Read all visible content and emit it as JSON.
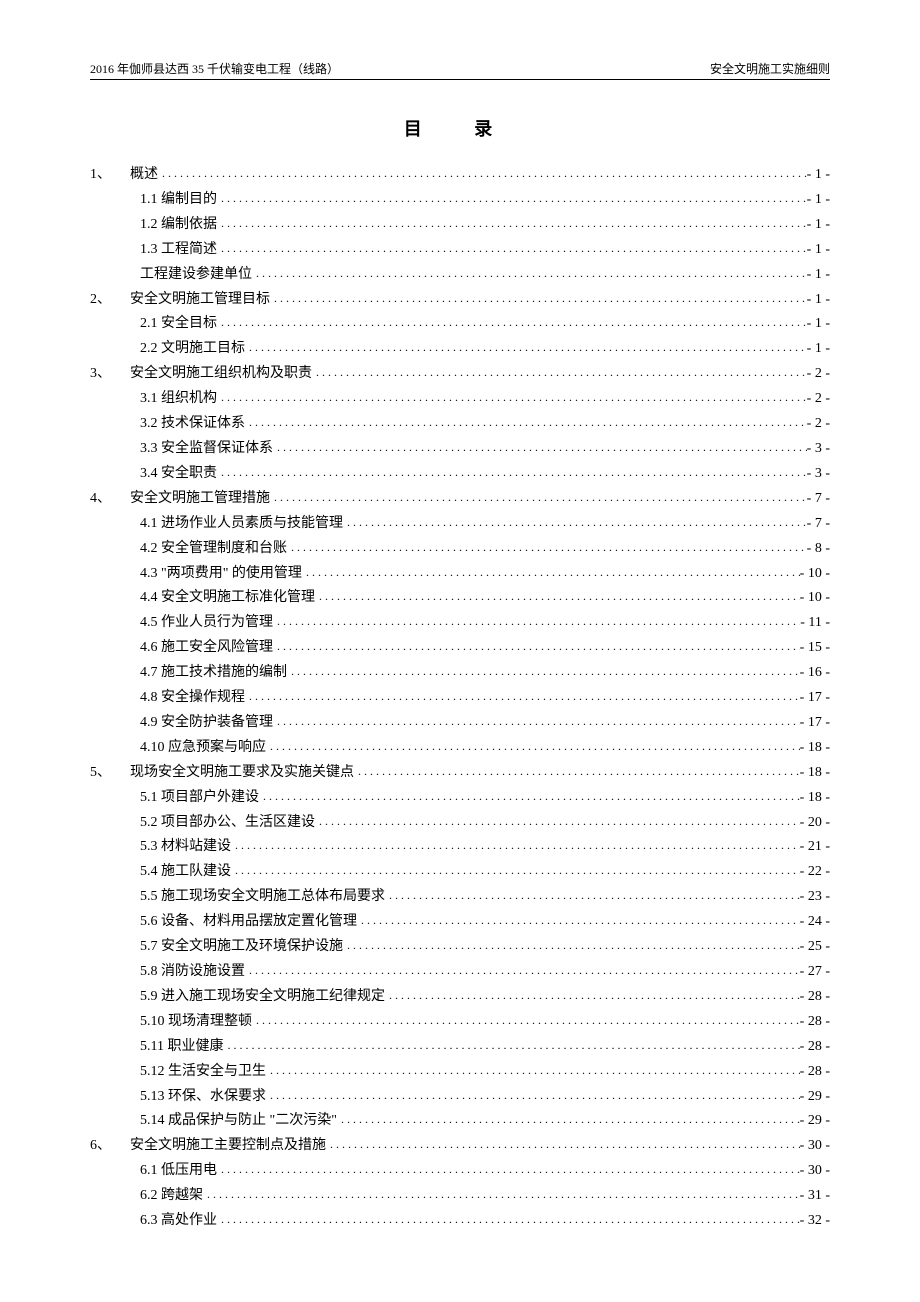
{
  "header": {
    "left": "2016 年伽师县达西 35 千伏输变电工程（线路）",
    "right": "安全文明施工实施细则"
  },
  "title": "目  录",
  "toc": [
    {
      "level": 1,
      "num": "1、",
      "label": "概述",
      "page": "- 1 -"
    },
    {
      "level": 2,
      "num": "",
      "label": "1.1 编制目的",
      "page": "- 1 -"
    },
    {
      "level": 2,
      "num": "",
      "label": "1.2 编制依据",
      "page": "- 1 -"
    },
    {
      "level": 2,
      "num": "",
      "label": "1.3 工程简述",
      "page": "- 1 -"
    },
    {
      "level": 2,
      "num": "",
      "label": "工程建设参建单位",
      "page": "- 1 -"
    },
    {
      "level": 1,
      "num": "2、",
      "label": "安全文明施工管理目标",
      "page": "- 1 -"
    },
    {
      "level": 2,
      "num": "",
      "label": "2.1 安全目标",
      "page": "- 1 -"
    },
    {
      "level": 2,
      "num": "",
      "label": "2.2 文明施工目标",
      "page": "- 1 -"
    },
    {
      "level": 1,
      "num": "3、",
      "label": "安全文明施工组织机构及职责",
      "page": "- 2 -"
    },
    {
      "level": 2,
      "num": "",
      "label": "3.1 组织机构",
      "page": "- 2 -"
    },
    {
      "level": 2,
      "num": "",
      "label": "3.2 技术保证体系",
      "page": "- 2 -"
    },
    {
      "level": 2,
      "num": "",
      "label": "3.3 安全监督保证体系",
      "page": "- 3 -"
    },
    {
      "level": 2,
      "num": "",
      "label": "3.4 安全职责",
      "page": "- 3 -"
    },
    {
      "level": 1,
      "num": "4、",
      "label": "安全文明施工管理措施",
      "page": "- 7 -"
    },
    {
      "level": 2,
      "num": "",
      "label": "4.1 进场作业人员素质与技能管理",
      "page": "- 7 -"
    },
    {
      "level": 2,
      "num": "",
      "label": "4.2 安全管理制度和台账",
      "page": "- 8 -"
    },
    {
      "level": 2,
      "num": "",
      "label": "4.3 \"两项费用\" 的使用管理",
      "page": "- 10 -"
    },
    {
      "level": 2,
      "num": "",
      "label": "4.4 安全文明施工标准化管理",
      "page": "- 10 -"
    },
    {
      "level": 2,
      "num": "",
      "label": "4.5 作业人员行为管理",
      "page": "- 11 -"
    },
    {
      "level": 2,
      "num": "",
      "label": "4.6 施工安全风险管理",
      "page": "- 15 -"
    },
    {
      "level": 2,
      "num": "",
      "label": "4.7 施工技术措施的编制",
      "page": "- 16 -"
    },
    {
      "level": 2,
      "num": "",
      "label": "4.8 安全操作规程",
      "page": "- 17 -"
    },
    {
      "level": 2,
      "num": "",
      "label": "4.9 安全防护装备管理",
      "page": "- 17 -"
    },
    {
      "level": 2,
      "num": "",
      "label": "4.10 应急预案与响应",
      "page": "- 18 -"
    },
    {
      "level": 1,
      "num": "5、",
      "label": "现场安全文明施工要求及实施关键点",
      "page": "- 18 -"
    },
    {
      "level": 2,
      "num": "",
      "label": "5.1 项目部户外建设",
      "page": "- 18 -"
    },
    {
      "level": 2,
      "num": "",
      "label": "5.2 项目部办公、生活区建设",
      "page": "- 20 -"
    },
    {
      "level": 2,
      "num": "",
      "label": "5.3 材料站建设",
      "page": "- 21 -"
    },
    {
      "level": 2,
      "num": "",
      "label": "5.4 施工队建设",
      "page": "- 22 -"
    },
    {
      "level": 2,
      "num": "",
      "label": "5.5 施工现场安全文明施工总体布局要求",
      "page": "- 23 -"
    },
    {
      "level": 2,
      "num": "",
      "label": "5.6 设备、材料用品摆放定置化管理",
      "page": "- 24 -"
    },
    {
      "level": 2,
      "num": "",
      "label": "5.7 安全文明施工及环境保护设施",
      "page": "- 25 -"
    },
    {
      "level": 2,
      "num": "",
      "label": "5.8 消防设施设置",
      "page": "- 27 -"
    },
    {
      "level": 2,
      "num": "",
      "label": "5.9   进入施工现场安全文明施工纪律规定",
      "page": "- 28 -"
    },
    {
      "level": 2,
      "num": "",
      "label": "5.10 现场清理整顿",
      "page": "- 28 -"
    },
    {
      "level": 2,
      "num": "",
      "label": "5.11 职业健康",
      "page": "- 28 -"
    },
    {
      "level": 2,
      "num": "",
      "label": "5.12 生活安全与卫生",
      "page": "- 28 -"
    },
    {
      "level": 2,
      "num": "",
      "label": "5.13 环保、水保要求",
      "page": "- 29 -"
    },
    {
      "level": 2,
      "num": "",
      "label": "5.14 成品保护与防止 \"二次污染\"",
      "page": "- 29 -"
    },
    {
      "level": 1,
      "num": "6、",
      "label": "安全文明施工主要控制点及措施",
      "page": "- 30 -"
    },
    {
      "level": 2,
      "num": "",
      "label": "6.1 低压用电",
      "page": "- 30 -"
    },
    {
      "level": 2,
      "num": "",
      "label": "6.2 跨越架",
      "page": "- 31 -"
    },
    {
      "level": 2,
      "num": "",
      "label": "6.3 高处作业",
      "page": "- 32 -"
    }
  ]
}
